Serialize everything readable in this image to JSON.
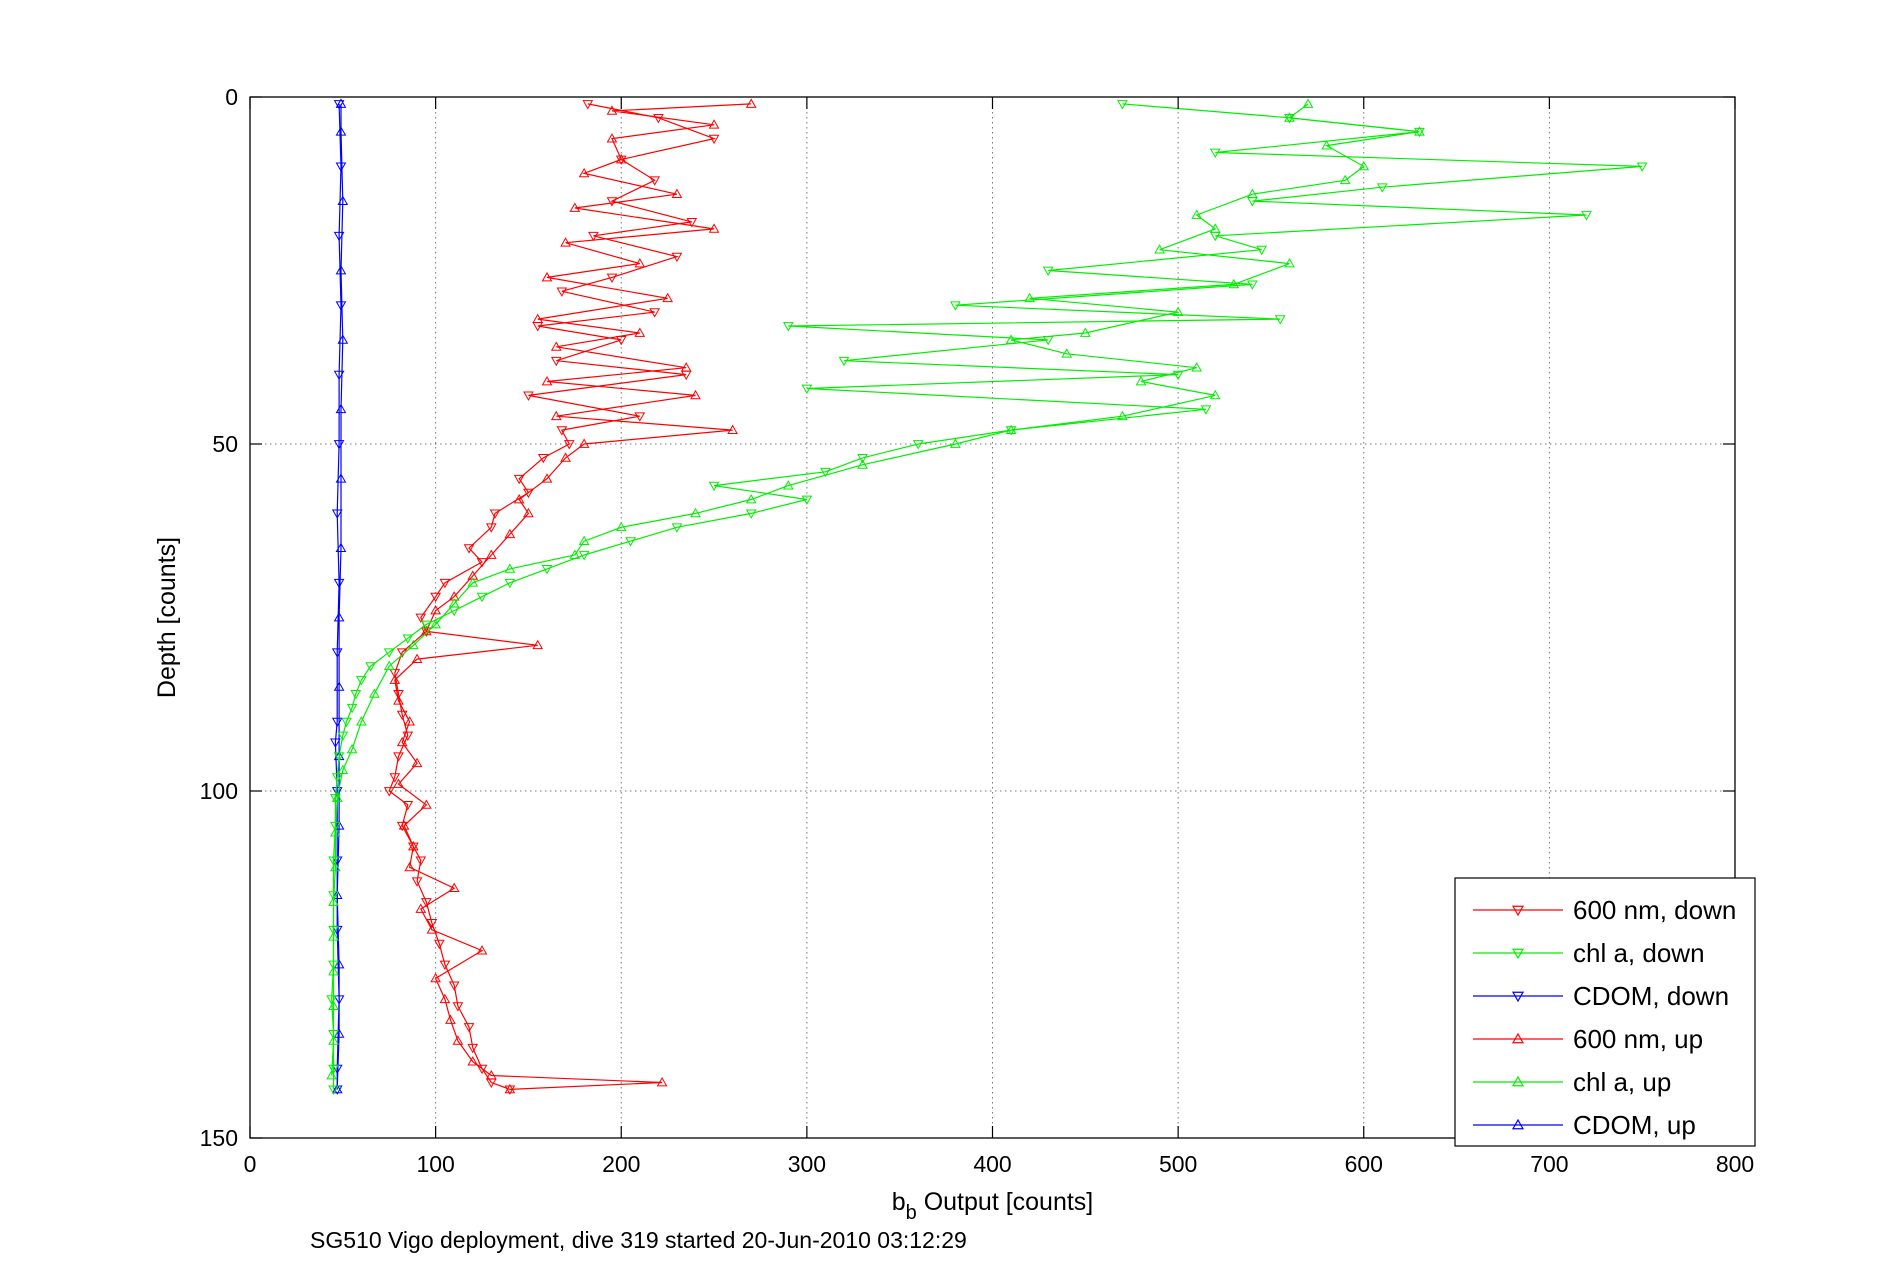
{
  "chart_data": {
    "type": "line",
    "title": "",
    "xlabel": "b",
    "xlabel_sub": "b",
    "xlabel_rest": " Output [counts]",
    "ylabel": "Depth [counts]",
    "footer": "SG510 Vigo deployment, dive 319 started 20-Jun-2010 03:12:29",
    "xlim": [
      0,
      800
    ],
    "ylim": [
      0,
      150
    ],
    "y_reversed": true,
    "grid": true,
    "grid_style": "dotted",
    "legend_position": "bottom-right",
    "xticks": [
      "0",
      "100",
      "200",
      "300",
      "400",
      "500",
      "600",
      "700",
      "800"
    ],
    "yticks": [
      "0",
      "50",
      "100",
      "150"
    ],
    "series": [
      {
        "name": "600 nm, down",
        "color": "#ff0000",
        "marker": "triangle-down",
        "direction": "down",
        "points": [
          [
            182,
            1
          ],
          [
            220,
            3
          ],
          [
            250,
            6
          ],
          [
            200,
            9
          ],
          [
            218,
            12
          ],
          [
            195,
            15
          ],
          [
            238,
            18
          ],
          [
            185,
            20
          ],
          [
            230,
            23
          ],
          [
            195,
            26
          ],
          [
            168,
            28
          ],
          [
            218,
            31
          ],
          [
            155,
            33
          ],
          [
            200,
            35
          ],
          [
            165,
            38
          ],
          [
            235,
            40
          ],
          [
            150,
            43
          ],
          [
            210,
            46
          ],
          [
            168,
            48
          ],
          [
            172,
            50
          ],
          [
            158,
            52
          ],
          [
            145,
            55
          ],
          [
            150,
            57
          ],
          [
            132,
            60
          ],
          [
            130,
            62
          ],
          [
            118,
            65
          ],
          [
            125,
            67
          ],
          [
            105,
            70
          ],
          [
            100,
            72
          ],
          [
            92,
            75
          ],
          [
            95,
            77
          ],
          [
            82,
            80
          ],
          [
            78,
            83
          ],
          [
            80,
            86
          ],
          [
            82,
            89
          ],
          [
            85,
            92
          ],
          [
            80,
            95
          ],
          [
            78,
            98
          ],
          [
            75,
            100
          ],
          [
            85,
            102
          ],
          [
            82,
            105
          ],
          [
            88,
            108
          ],
          [
            92,
            110
          ],
          [
            90,
            113
          ],
          [
            95,
            116
          ],
          [
            98,
            119
          ],
          [
            102,
            122
          ],
          [
            105,
            125
          ],
          [
            110,
            128
          ],
          [
            112,
            131
          ],
          [
            118,
            134
          ],
          [
            120,
            137
          ],
          [
            125,
            140
          ],
          [
            130,
            142
          ],
          [
            140,
            143
          ]
        ]
      },
      {
        "name": "chl a, down",
        "color": "#00ee00",
        "marker": "triangle-down",
        "direction": "down",
        "points": [
          [
            470,
            1
          ],
          [
            560,
            3
          ],
          [
            630,
            5
          ],
          [
            520,
            8
          ],
          [
            750,
            10
          ],
          [
            610,
            13
          ],
          [
            540,
            15
          ],
          [
            720,
            17
          ],
          [
            520,
            20
          ],
          [
            545,
            22
          ],
          [
            430,
            25
          ],
          [
            540,
            27
          ],
          [
            380,
            30
          ],
          [
            555,
            32
          ],
          [
            290,
            33
          ],
          [
            430,
            35
          ],
          [
            320,
            38
          ],
          [
            500,
            40
          ],
          [
            300,
            42
          ],
          [
            515,
            45
          ],
          [
            410,
            48
          ],
          [
            360,
            50
          ],
          [
            330,
            52
          ],
          [
            310,
            54
          ],
          [
            250,
            56
          ],
          [
            300,
            58
          ],
          [
            270,
            60
          ],
          [
            230,
            62
          ],
          [
            205,
            64
          ],
          [
            180,
            66
          ],
          [
            160,
            68
          ],
          [
            140,
            70
          ],
          [
            125,
            72
          ],
          [
            110,
            74
          ],
          [
            95,
            76
          ],
          [
            85,
            78
          ],
          [
            75,
            80
          ],
          [
            65,
            82
          ],
          [
            60,
            84
          ],
          [
            57,
            86
          ],
          [
            55,
            88
          ],
          [
            52,
            90
          ],
          [
            50,
            92
          ],
          [
            48,
            95
          ],
          [
            47,
            98
          ],
          [
            46,
            101
          ],
          [
            46,
            105
          ],
          [
            45,
            110
          ],
          [
            45,
            115
          ],
          [
            45,
            120
          ],
          [
            45,
            125
          ],
          [
            44,
            130
          ],
          [
            45,
            135
          ],
          [
            45,
            140
          ],
          [
            45,
            143
          ]
        ]
      },
      {
        "name": "CDOM, down",
        "color": "#0000ff",
        "marker": "triangle-down",
        "direction": "down",
        "points": [
          [
            48,
            1
          ],
          [
            49,
            10
          ],
          [
            48,
            20
          ],
          [
            49,
            30
          ],
          [
            48,
            40
          ],
          [
            48,
            50
          ],
          [
            47,
            60
          ],
          [
            48,
            70
          ],
          [
            47,
            80
          ],
          [
            47,
            90
          ],
          [
            46,
            93
          ],
          [
            47,
            100
          ],
          [
            47,
            110
          ],
          [
            47,
            120
          ],
          [
            48,
            130
          ],
          [
            47,
            140
          ],
          [
            47,
            143
          ]
        ]
      },
      {
        "name": "600 nm, up",
        "color": "#ff0000",
        "marker": "triangle-up",
        "direction": "up",
        "points": [
          [
            140,
            143
          ],
          [
            222,
            142
          ],
          [
            130,
            141
          ],
          [
            120,
            139
          ],
          [
            112,
            136
          ],
          [
            108,
            133
          ],
          [
            105,
            130
          ],
          [
            100,
            127
          ],
          [
            125,
            123
          ],
          [
            98,
            120
          ],
          [
            92,
            117
          ],
          [
            110,
            114
          ],
          [
            86,
            111
          ],
          [
            88,
            108
          ],
          [
            83,
            105
          ],
          [
            95,
            102
          ],
          [
            80,
            99
          ],
          [
            90,
            96
          ],
          [
            82,
            93
          ],
          [
            86,
            90
          ],
          [
            80,
            87
          ],
          [
            78,
            84
          ],
          [
            90,
            81
          ],
          [
            155,
            79
          ],
          [
            95,
            77
          ],
          [
            100,
            74
          ],
          [
            110,
            72
          ],
          [
            120,
            69
          ],
          [
            130,
            66
          ],
          [
            140,
            63
          ],
          [
            150,
            60
          ],
          [
            145,
            58
          ],
          [
            160,
            55
          ],
          [
            170,
            52
          ],
          [
            180,
            50
          ],
          [
            260,
            48
          ],
          [
            165,
            46
          ],
          [
            240,
            43
          ],
          [
            160,
            41
          ],
          [
            235,
            39
          ],
          [
            165,
            36
          ],
          [
            210,
            34
          ],
          [
            155,
            32
          ],
          [
            225,
            29
          ],
          [
            160,
            26
          ],
          [
            210,
            24
          ],
          [
            170,
            21
          ],
          [
            250,
            19
          ],
          [
            175,
            16
          ],
          [
            230,
            14
          ],
          [
            180,
            11
          ],
          [
            200,
            9
          ],
          [
            195,
            6
          ],
          [
            250,
            4
          ],
          [
            195,
            2
          ],
          [
            270,
            1
          ]
        ]
      },
      {
        "name": "chl a, up",
        "color": "#00ee00",
        "marker": "triangle-up",
        "direction": "up",
        "points": [
          [
            44,
            141
          ],
          [
            45,
            136
          ],
          [
            45,
            131
          ],
          [
            45,
            126
          ],
          [
            45,
            121
          ],
          [
            45,
            116
          ],
          [
            46,
            111
          ],
          [
            46,
            106
          ],
          [
            47,
            101
          ],
          [
            50,
            97
          ],
          [
            55,
            94
          ],
          [
            60,
            90
          ],
          [
            67,
            86
          ],
          [
            75,
            82
          ],
          [
            88,
            79
          ],
          [
            100,
            76
          ],
          [
            110,
            73
          ],
          [
            120,
            70
          ],
          [
            140,
            68
          ],
          [
            175,
            66
          ],
          [
            180,
            64
          ],
          [
            200,
            62
          ],
          [
            240,
            60
          ],
          [
            270,
            58
          ],
          [
            290,
            56
          ],
          [
            330,
            53
          ],
          [
            380,
            50
          ],
          [
            410,
            48
          ],
          [
            470,
            46
          ],
          [
            520,
            43
          ],
          [
            480,
            41
          ],
          [
            510,
            39
          ],
          [
            440,
            37
          ],
          [
            410,
            35
          ],
          [
            450,
            34
          ],
          [
            500,
            31
          ],
          [
            420,
            29
          ],
          [
            530,
            27
          ],
          [
            560,
            24
          ],
          [
            490,
            22
          ],
          [
            520,
            19
          ],
          [
            510,
            17
          ],
          [
            540,
            14
          ],
          [
            590,
            12
          ],
          [
            600,
            10
          ],
          [
            580,
            7
          ],
          [
            630,
            5
          ],
          [
            560,
            3
          ],
          [
            570,
            1
          ]
        ]
      },
      {
        "name": "CDOM, up",
        "color": "#0000ff",
        "marker": "triangle-up",
        "direction": "up",
        "points": [
          [
            47,
            143
          ],
          [
            48,
            135
          ],
          [
            48,
            125
          ],
          [
            47,
            115
          ],
          [
            48,
            105
          ],
          [
            48,
            95
          ],
          [
            48,
            85
          ],
          [
            48,
            75
          ],
          [
            49,
            65
          ],
          [
            49,
            55
          ],
          [
            49,
            45
          ],
          [
            50,
            35
          ],
          [
            49,
            25
          ],
          [
            50,
            15
          ],
          [
            49,
            5
          ],
          [
            49,
            1
          ]
        ]
      }
    ]
  }
}
